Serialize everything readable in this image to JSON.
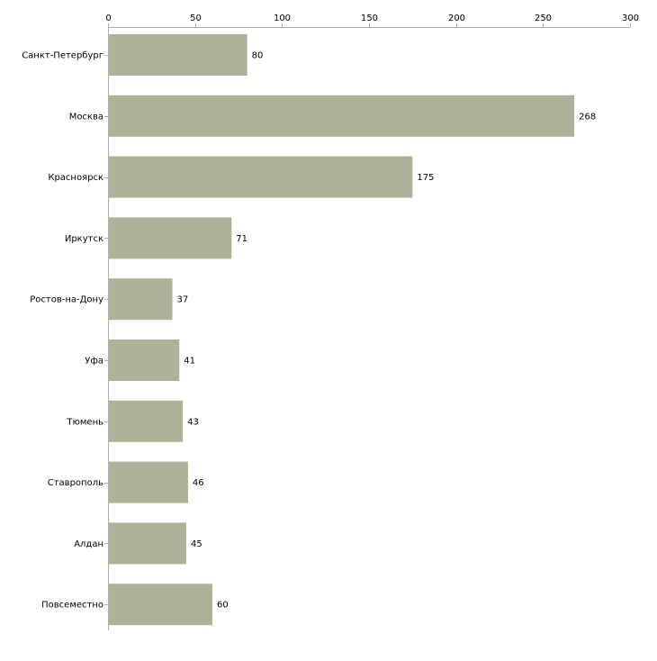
{
  "chart_data": {
    "type": "bar",
    "orientation": "horizontal",
    "title": "",
    "xlabel": "",
    "ylabel": "",
    "xlim": [
      0,
      300
    ],
    "x_ticks": [
      0,
      50,
      100,
      150,
      200,
      250,
      300
    ],
    "x_tick_labels": [
      "0",
      "50",
      "100",
      "150",
      "200",
      "250",
      "300"
    ],
    "x_axis_position": "top",
    "grid": false,
    "legend": "none",
    "categories": [
      "Санкт-Петербург",
      "Москва",
      "Красноярск",
      "Иркутск",
      "Ростов-на-Дону",
      "Уфа",
      "Тюмень",
      "Ставрополь",
      "Алдан",
      "Повсеместно"
    ],
    "values": [
      80,
      268,
      175,
      71,
      37,
      41,
      43,
      46,
      45,
      60
    ],
    "value_labels": [
      "80",
      "268",
      "175",
      "71",
      "37",
      "41",
      "43",
      "46",
      "45",
      "60"
    ],
    "bar_color": "#adb398",
    "axis_color": "#b0b0b0"
  }
}
